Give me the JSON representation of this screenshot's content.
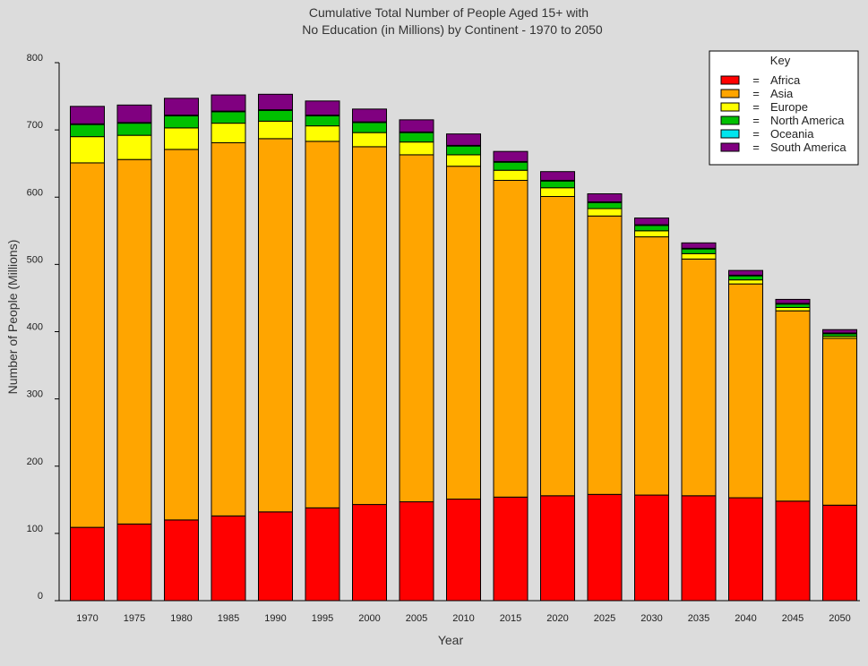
{
  "chart_data": {
    "type": "bar",
    "stacked": true,
    "title_lines": [
      "Cumulative Total Number of People Aged 15+ with",
      "No Education (in Millions) by Continent - 1970 to 2050"
    ],
    "xlabel": "Year",
    "ylabel": "Number of People (Millions)",
    "ylim": [
      0,
      800
    ],
    "yticks": [
      0,
      100,
      200,
      300,
      400,
      500,
      600,
      700,
      800
    ],
    "grid": false,
    "legend": {
      "title": "Key",
      "placement": "top-right",
      "separator": "="
    },
    "categories": [
      "1970",
      "1975",
      "1980",
      "1985",
      "1990",
      "1995",
      "2000",
      "2005",
      "2010",
      "2015",
      "2020",
      "2025",
      "2030",
      "2035",
      "2040",
      "2045",
      "2050"
    ],
    "series": [
      {
        "name": "Africa",
        "color": "#ff0000",
        "values": [
          109,
          114,
          120,
          126,
          132,
          138,
          143,
          147,
          151,
          154,
          156,
          158,
          157,
          156,
          153,
          148,
          142
        ]
      },
      {
        "name": "Asia",
        "color": "#ffa500",
        "values": [
          542,
          542,
          551,
          555,
          555,
          545,
          532,
          516,
          495,
          471,
          445,
          414,
          384,
          352,
          318,
          283,
          248
        ]
      },
      {
        "name": "Europe",
        "color": "#ffff00",
        "values": [
          39,
          36,
          32,
          29,
          26,
          23,
          21,
          19,
          17,
          15,
          13,
          11,
          9,
          8,
          6,
          5,
          3
        ]
      },
      {
        "name": "North America",
        "color": "#00c000",
        "values": [
          18,
          18,
          18,
          17,
          16,
          15,
          15,
          14,
          13,
          12,
          10,
          9,
          8,
          7,
          6,
          5,
          4
        ]
      },
      {
        "name": "Oceania",
        "color": "#00e5ee",
        "values": [
          1,
          1,
          1,
          1,
          1,
          1,
          1,
          1,
          1,
          1,
          1,
          1,
          1,
          1,
          1,
          1,
          1
        ]
      },
      {
        "name": "South America",
        "color": "#800080",
        "values": [
          26,
          26,
          25,
          24,
          23,
          21,
          19,
          18,
          17,
          15,
          13,
          12,
          10,
          8,
          7,
          6,
          5
        ]
      }
    ]
  }
}
